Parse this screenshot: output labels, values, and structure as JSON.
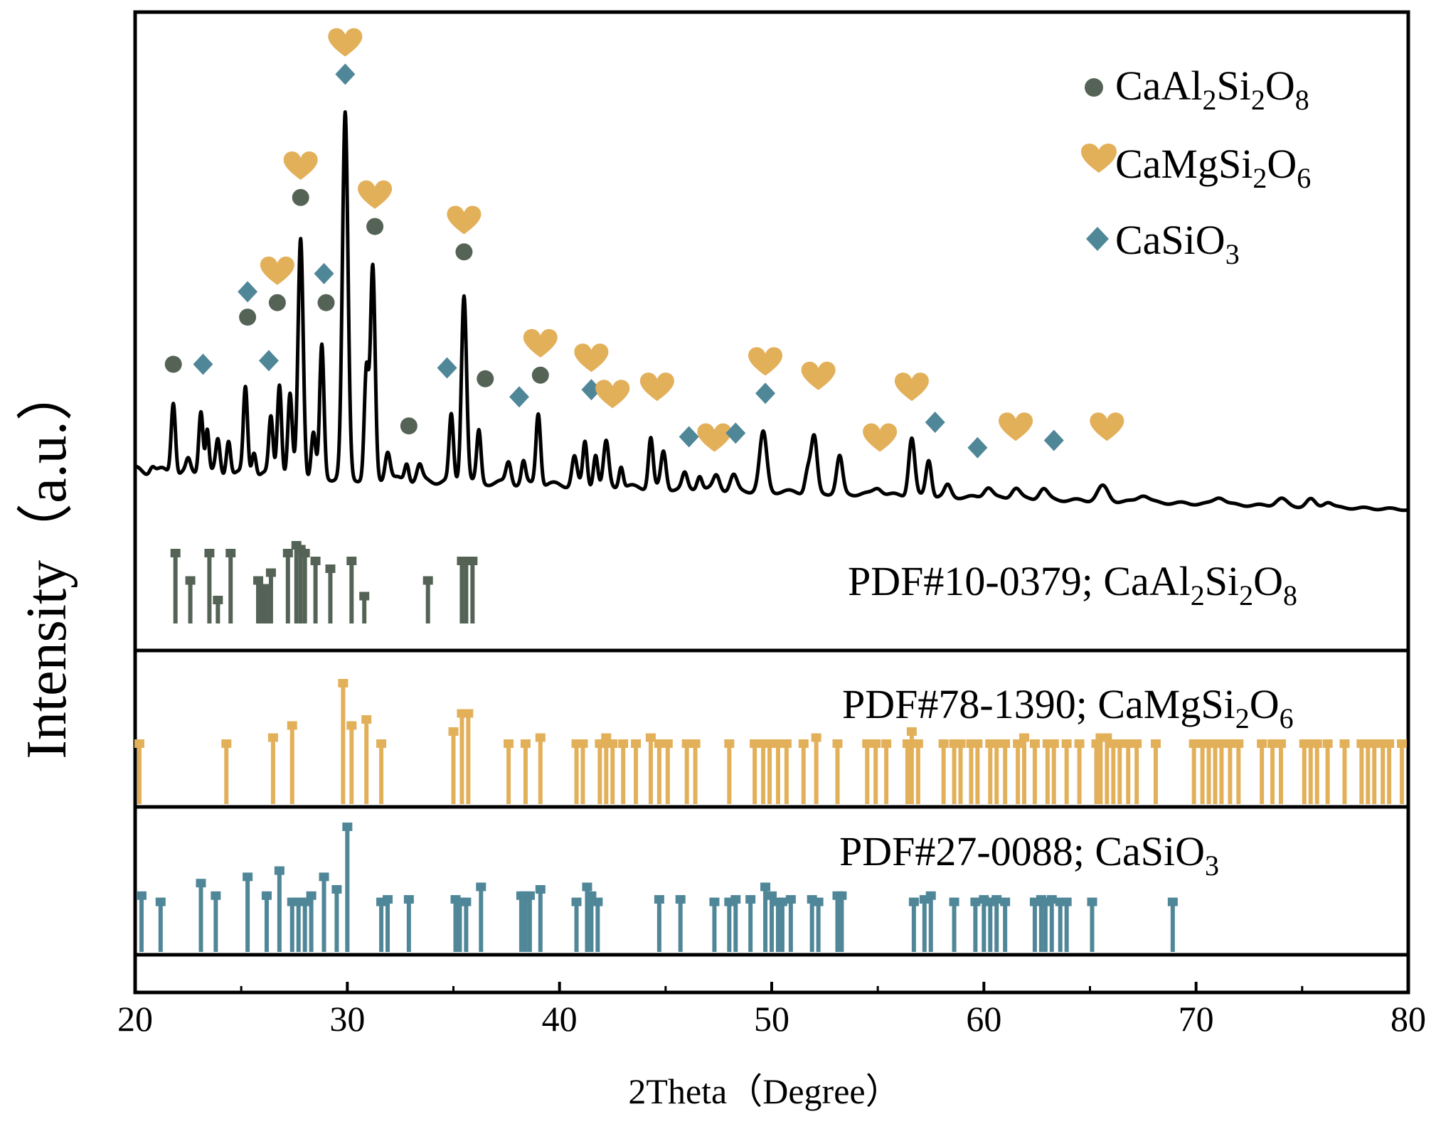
{
  "chart_data": {
    "type": "line",
    "xlabel": "2Theta（Degree）",
    "ylabel": "Intensity（a.u.）",
    "xlim": [
      20,
      80
    ],
    "xticks": [
      20,
      30,
      40,
      50,
      60,
      70,
      80
    ],
    "phases": [
      {
        "key": "anorthite",
        "name": "CaAl2Si2O8",
        "base": "CaAl",
        "sub1": "2",
        "mid": "Si",
        "sub2": "2",
        "mid2": "O",
        "sub3": "8",
        "marker": "circle",
        "color": "#556356"
      },
      {
        "key": "diopside",
        "name": "CaMgSi2O6",
        "base": "CaMgSi",
        "sub1": "2",
        "mid": "O",
        "sub2": "6",
        "marker": "heart",
        "color": "#E3B05A"
      },
      {
        "key": "wollastonite",
        "name": "CaSiO3",
        "base": "CaSiO",
        "sub1": "3",
        "marker": "diamond",
        "color": "#4F8798"
      }
    ],
    "pattern_peaks": [
      [
        20.8,
        0.02,
        0.12
      ],
      [
        21.8,
        0.2,
        0.1
      ],
      [
        22.5,
        0.03,
        0.1
      ],
      [
        23.1,
        0.18,
        0.1
      ],
      [
        23.4,
        0.12,
        0.08
      ],
      [
        23.9,
        0.09,
        0.1
      ],
      [
        24.4,
        0.1,
        0.1
      ],
      [
        25.2,
        0.24,
        0.1
      ],
      [
        25.6,
        0.07,
        0.1
      ],
      [
        26.4,
        0.16,
        0.1
      ],
      [
        26.8,
        0.26,
        0.1
      ],
      [
        27.3,
        0.22,
        0.1
      ],
      [
        27.8,
        0.66,
        0.12
      ],
      [
        28.4,
        0.12,
        0.1
      ],
      [
        28.8,
        0.36,
        0.1
      ],
      [
        29.9,
        1.0,
        0.13
      ],
      [
        30.9,
        0.3,
        0.1
      ],
      [
        31.2,
        0.58,
        0.11
      ],
      [
        31.9,
        0.08,
        0.12
      ],
      [
        32.8,
        0.05,
        0.1
      ],
      [
        33.4,
        0.04,
        0.12
      ],
      [
        34.9,
        0.18,
        0.1
      ],
      [
        35.5,
        0.52,
        0.12
      ],
      [
        36.2,
        0.14,
        0.1
      ],
      [
        37.6,
        0.06,
        0.12
      ],
      [
        38.3,
        0.06,
        0.1
      ],
      [
        39.0,
        0.2,
        0.11
      ],
      [
        40.7,
        0.08,
        0.12
      ],
      [
        41.2,
        0.12,
        0.1
      ],
      [
        41.7,
        0.09,
        0.1
      ],
      [
        42.2,
        0.12,
        0.12
      ],
      [
        42.9,
        0.06,
        0.1
      ],
      [
        44.3,
        0.14,
        0.11
      ],
      [
        44.9,
        0.1,
        0.12
      ],
      [
        45.9,
        0.04,
        0.12
      ],
      [
        46.6,
        0.04,
        0.12
      ],
      [
        47.4,
        0.04,
        0.15
      ],
      [
        48.2,
        0.04,
        0.15
      ],
      [
        49.6,
        0.16,
        0.17
      ],
      [
        51.7,
        0.06,
        0.13
      ],
      [
        52.0,
        0.15,
        0.14
      ],
      [
        53.2,
        0.1,
        0.14
      ],
      [
        55.0,
        0.02,
        0.2
      ],
      [
        56.6,
        0.16,
        0.14
      ],
      [
        57.4,
        0.1,
        0.13
      ],
      [
        58.3,
        0.03,
        0.15
      ],
      [
        60.2,
        0.03,
        0.2
      ],
      [
        61.5,
        0.03,
        0.2
      ],
      [
        62.8,
        0.03,
        0.2
      ],
      [
        65.6,
        0.04,
        0.25
      ],
      [
        67.5,
        0.02,
        0.25
      ],
      [
        71.1,
        0.02,
        0.25
      ],
      [
        74.0,
        0.02,
        0.25
      ],
      [
        75.4,
        0.02,
        0.2
      ],
      [
        76.2,
        0.015,
        0.2
      ]
    ],
    "markers": [
      {
        "phase": "anorthite",
        "x": 21.8,
        "level": 0.26
      },
      {
        "phase": "wollastonite",
        "x": 23.2,
        "level": 0.26
      },
      {
        "phase": "anorthite",
        "x": 25.3,
        "level": 0.39
      },
      {
        "phase": "wollastonite",
        "x": 25.3,
        "level": 0.46
      },
      {
        "phase": "wollastonite",
        "x": 26.3,
        "level": 0.27
      },
      {
        "phase": "anorthite",
        "x": 26.7,
        "level": 0.43
      },
      {
        "phase": "diopside",
        "x": 26.7,
        "level": 0.51
      },
      {
        "phase": "anorthite",
        "x": 27.8,
        "level": 0.72
      },
      {
        "phase": "diopside",
        "x": 27.8,
        "level": 0.8
      },
      {
        "phase": "anorthite",
        "x": 29.0,
        "level": 0.43
      },
      {
        "phase": "wollastonite",
        "x": 28.9,
        "level": 0.51
      },
      {
        "phase": "wollastonite",
        "x": 29.9,
        "level": 1.06
      },
      {
        "phase": "diopside",
        "x": 29.9,
        "level": 1.14
      },
      {
        "phase": "anorthite",
        "x": 31.3,
        "level": 0.64
      },
      {
        "phase": "diopside",
        "x": 31.3,
        "level": 0.72
      },
      {
        "phase": "anorthite",
        "x": 32.9,
        "level": 0.09
      },
      {
        "phase": "wollastonite",
        "x": 34.7,
        "level": 0.25
      },
      {
        "phase": "anorthite",
        "x": 35.5,
        "level": 0.57
      },
      {
        "phase": "diopside",
        "x": 35.5,
        "level": 0.65
      },
      {
        "phase": "anorthite",
        "x": 36.5,
        "level": 0.22
      },
      {
        "phase": "wollastonite",
        "x": 38.1,
        "level": 0.17
      },
      {
        "phase": "anorthite",
        "x": 39.1,
        "level": 0.23
      },
      {
        "phase": "diopside",
        "x": 39.1,
        "level": 0.31
      },
      {
        "phase": "wollastonite",
        "x": 41.5,
        "level": 0.19
      },
      {
        "phase": "diopside",
        "x": 41.5,
        "level": 0.27
      },
      {
        "phase": "diopside",
        "x": 42.5,
        "level": 0.17
      },
      {
        "phase": "diopside",
        "x": 44.6,
        "level": 0.19
      },
      {
        "phase": "wollastonite",
        "x": 46.1,
        "level": 0.06
      },
      {
        "phase": "diopside",
        "x": 47.3,
        "level": 0.05
      },
      {
        "phase": "wollastonite",
        "x": 48.3,
        "level": 0.07
      },
      {
        "phase": "wollastonite",
        "x": 49.7,
        "level": 0.18
      },
      {
        "phase": "diopside",
        "x": 49.7,
        "level": 0.26
      },
      {
        "phase": "diopside",
        "x": 52.2,
        "level": 0.22
      },
      {
        "phase": "diopside",
        "x": 55.1,
        "level": 0.05
      },
      {
        "phase": "diopside",
        "x": 56.6,
        "level": 0.19
      },
      {
        "phase": "wollastonite",
        "x": 57.7,
        "level": 0.1
      },
      {
        "phase": "wollastonite",
        "x": 59.7,
        "level": 0.03
      },
      {
        "phase": "diopside",
        "x": 61.5,
        "level": 0.08
      },
      {
        "phase": "wollastonite",
        "x": 63.3,
        "level": 0.05
      },
      {
        "phase": "diopside",
        "x": 65.8,
        "level": 0.08
      }
    ],
    "references": [
      {
        "phase": "anorthite",
        "label_base": "PDF#10-0379; CaAl",
        "sub1": "2",
        "mid": "Si",
        "sub2": "2",
        "mid2": "O",
        "sub3": "8",
        "peaks": [
          [
            21.9,
            0.9
          ],
          [
            22.6,
            0.55
          ],
          [
            23.5,
            0.9
          ],
          [
            23.9,
            0.3
          ],
          [
            24.5,
            0.9
          ],
          [
            25.8,
            0.55
          ],
          [
            26.0,
            0.45
          ],
          [
            26.2,
            0.45
          ],
          [
            26.4,
            0.65
          ],
          [
            27.2,
            0.9
          ],
          [
            27.6,
            1.0
          ],
          [
            27.8,
            0.95
          ],
          [
            28.0,
            0.9
          ],
          [
            28.5,
            0.8
          ],
          [
            29.2,
            0.7
          ],
          [
            30.2,
            0.8
          ],
          [
            30.8,
            0.35
          ],
          [
            33.8,
            0.55
          ],
          [
            35.4,
            0.8
          ],
          [
            35.6,
            0.8
          ],
          [
            35.9,
            0.8
          ]
        ]
      },
      {
        "phase": "diopside",
        "label_base": "PDF#78-1390; CaMgSi",
        "sub1": "2",
        "mid": "O",
        "sub2": "6",
        "peaks": [
          [
            20.2,
            0.5
          ],
          [
            24.3,
            0.5
          ],
          [
            26.5,
            0.55
          ],
          [
            27.4,
            0.65
          ],
          [
            29.8,
            1.0
          ],
          [
            30.2,
            0.65
          ],
          [
            30.9,
            0.7
          ],
          [
            31.6,
            0.5
          ],
          [
            35.0,
            0.6
          ],
          [
            35.4,
            0.75
          ],
          [
            35.7,
            0.75
          ],
          [
            37.6,
            0.5
          ],
          [
            38.4,
            0.5
          ],
          [
            39.1,
            0.55
          ],
          [
            40.8,
            0.5
          ],
          [
            41.1,
            0.5
          ],
          [
            41.9,
            0.5
          ],
          [
            42.2,
            0.55
          ],
          [
            42.5,
            0.5
          ],
          [
            43.0,
            0.5
          ],
          [
            43.6,
            0.5
          ],
          [
            44.3,
            0.55
          ],
          [
            44.7,
            0.5
          ],
          [
            45.1,
            0.5
          ],
          [
            46.0,
            0.5
          ],
          [
            46.4,
            0.5
          ],
          [
            48.0,
            0.5
          ],
          [
            49.2,
            0.5
          ],
          [
            49.6,
            0.5
          ],
          [
            49.9,
            0.5
          ],
          [
            50.3,
            0.5
          ],
          [
            50.7,
            0.5
          ],
          [
            51.5,
            0.5
          ],
          [
            52.1,
            0.55
          ],
          [
            53.1,
            0.5
          ],
          [
            54.5,
            0.5
          ],
          [
            54.9,
            0.5
          ],
          [
            55.4,
            0.5
          ],
          [
            56.4,
            0.5
          ],
          [
            56.6,
            0.6
          ],
          [
            56.9,
            0.5
          ],
          [
            58.1,
            0.5
          ],
          [
            58.6,
            0.5
          ],
          [
            58.9,
            0.5
          ],
          [
            59.4,
            0.5
          ],
          [
            59.7,
            0.5
          ],
          [
            60.3,
            0.5
          ],
          [
            60.6,
            0.5
          ],
          [
            61.0,
            0.5
          ],
          [
            61.6,
            0.5
          ],
          [
            61.9,
            0.55
          ],
          [
            62.4,
            0.5
          ],
          [
            63.0,
            0.5
          ],
          [
            63.3,
            0.5
          ],
          [
            63.9,
            0.5
          ],
          [
            64.5,
            0.5
          ],
          [
            65.3,
            0.5
          ],
          [
            65.5,
            0.55
          ],
          [
            65.8,
            0.55
          ],
          [
            66.1,
            0.5
          ],
          [
            66.4,
            0.5
          ],
          [
            66.8,
            0.5
          ],
          [
            67.2,
            0.5
          ],
          [
            68.1,
            0.5
          ],
          [
            69.9,
            0.5
          ],
          [
            70.3,
            0.5
          ],
          [
            70.6,
            0.5
          ],
          [
            70.9,
            0.5
          ],
          [
            71.2,
            0.5
          ],
          [
            71.6,
            0.5
          ],
          [
            72.0,
            0.5
          ],
          [
            73.1,
            0.5
          ],
          [
            73.6,
            0.5
          ],
          [
            74.0,
            0.5
          ],
          [
            75.1,
            0.5
          ],
          [
            75.4,
            0.5
          ],
          [
            75.7,
            0.5
          ],
          [
            76.2,
            0.5
          ],
          [
            77.0,
            0.5
          ],
          [
            77.8,
            0.5
          ],
          [
            78.1,
            0.5
          ],
          [
            78.4,
            0.5
          ],
          [
            78.8,
            0.5
          ],
          [
            79.1,
            0.5
          ],
          [
            79.7,
            0.5
          ]
        ]
      },
      {
        "phase": "wollastonite",
        "label_base": "PDF#27-0088; CaSiO",
        "sub1": "3",
        "peaks": [
          [
            20.3,
            0.45
          ],
          [
            21.2,
            0.4
          ],
          [
            23.1,
            0.55
          ],
          [
            23.8,
            0.45
          ],
          [
            25.3,
            0.6
          ],
          [
            26.2,
            0.45
          ],
          [
            26.8,
            0.65
          ],
          [
            27.4,
            0.4
          ],
          [
            27.7,
            0.4
          ],
          [
            28.0,
            0.4
          ],
          [
            28.3,
            0.45
          ],
          [
            28.9,
            0.6
          ],
          [
            29.5,
            0.5
          ],
          [
            30.0,
            1.0
          ],
          [
            31.6,
            0.4
          ],
          [
            31.9,
            0.42
          ],
          [
            32.9,
            0.42
          ],
          [
            35.1,
            0.42
          ],
          [
            35.3,
            0.4
          ],
          [
            35.6,
            0.4
          ],
          [
            36.3,
            0.52
          ],
          [
            38.2,
            0.45
          ],
          [
            38.4,
            0.45
          ],
          [
            38.6,
            0.45
          ],
          [
            39.1,
            0.5
          ],
          [
            40.8,
            0.4
          ],
          [
            41.3,
            0.52
          ],
          [
            41.5,
            0.45
          ],
          [
            41.8,
            0.4
          ],
          [
            44.7,
            0.42
          ],
          [
            45.7,
            0.42
          ],
          [
            47.3,
            0.4
          ],
          [
            48.0,
            0.4
          ],
          [
            48.3,
            0.42
          ],
          [
            49.0,
            0.42
          ],
          [
            49.7,
            0.52
          ],
          [
            50.0,
            0.45
          ],
          [
            50.3,
            0.4
          ],
          [
            50.5,
            0.4
          ],
          [
            50.9,
            0.42
          ],
          [
            51.9,
            0.42
          ],
          [
            52.2,
            0.4
          ],
          [
            53.1,
            0.45
          ],
          [
            53.3,
            0.45
          ],
          [
            56.7,
            0.4
          ],
          [
            57.2,
            0.42
          ],
          [
            57.5,
            0.45
          ],
          [
            58.6,
            0.4
          ],
          [
            59.6,
            0.4
          ],
          [
            60.0,
            0.42
          ],
          [
            60.3,
            0.4
          ],
          [
            60.6,
            0.42
          ],
          [
            61.0,
            0.4
          ],
          [
            62.4,
            0.4
          ],
          [
            62.7,
            0.42
          ],
          [
            62.9,
            0.4
          ],
          [
            63.2,
            0.42
          ],
          [
            63.6,
            0.4
          ],
          [
            63.9,
            0.4
          ],
          [
            65.1,
            0.4
          ],
          [
            68.9,
            0.4
          ]
        ]
      }
    ]
  }
}
